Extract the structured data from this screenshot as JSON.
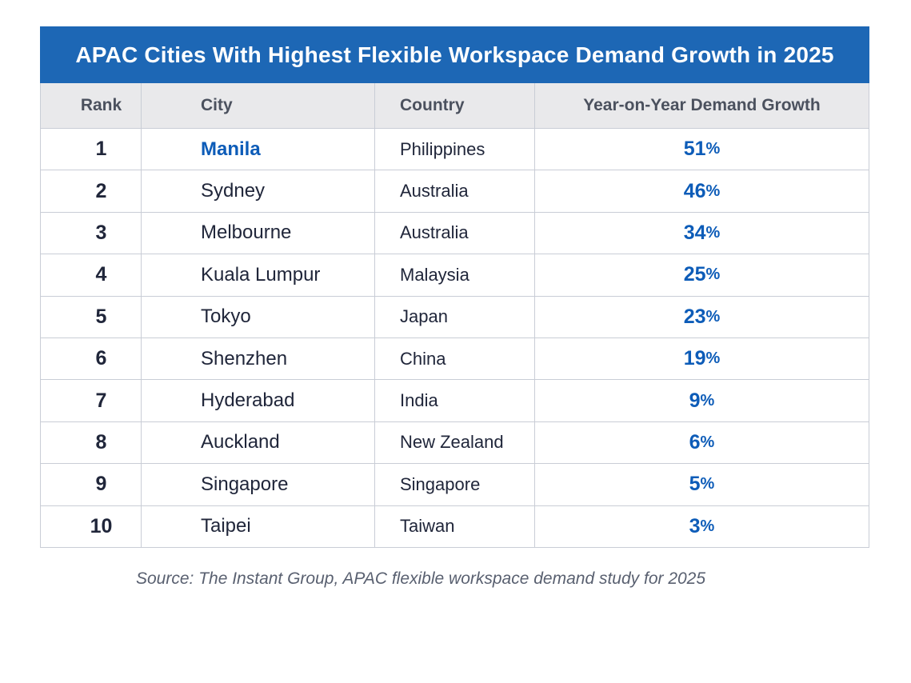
{
  "table": {
    "title": "APAC Cities With Highest Flexible Workspace Demand Growth in 2025",
    "columns": [
      "Rank",
      "City",
      "Country",
      "Year-on-Year Demand Growth"
    ],
    "rows": [
      {
        "rank": "1",
        "city": "Manila",
        "country": "Philippines",
        "growth_value": "51",
        "growth_unit": "%",
        "highlight": true
      },
      {
        "rank": "2",
        "city": "Sydney",
        "country": "Australia",
        "growth_value": "46",
        "growth_unit": "%",
        "highlight": false
      },
      {
        "rank": "3",
        "city": "Melbourne",
        "country": "Australia",
        "growth_value": "34",
        "growth_unit": "%",
        "highlight": false
      },
      {
        "rank": "4",
        "city": "Kuala Lumpur",
        "country": "Malaysia",
        "growth_value": "25",
        "growth_unit": "%",
        "highlight": false
      },
      {
        "rank": "5",
        "city": "Tokyo",
        "country": "Japan",
        "growth_value": "23",
        "growth_unit": "%",
        "highlight": false
      },
      {
        "rank": "6",
        "city": "Shenzhen",
        "country": "China",
        "growth_value": "19",
        "growth_unit": "%",
        "highlight": false
      },
      {
        "rank": "7",
        "city": "Hyderabad",
        "country": "India",
        "growth_value": "9",
        "growth_unit": "%",
        "highlight": false
      },
      {
        "rank": "8",
        "city": "Auckland",
        "country": "New Zealand",
        "growth_value": "6",
        "growth_unit": "%",
        "highlight": false
      },
      {
        "rank": "9",
        "city": "Singapore",
        "country": "Singapore",
        "growth_value": "5",
        "growth_unit": "%",
        "highlight": false
      },
      {
        "rank": "10",
        "city": "Taipei",
        "country": "Taiwan",
        "growth_value": "3",
        "growth_unit": "%",
        "highlight": false
      }
    ]
  },
  "source_note": "Source: The Instant Group, APAC flexible workspace demand study for 2025",
  "theme": {
    "banner-blue": "#1d67b5",
    "accent-blue": "#0d5cb8",
    "header-bg": "#e9e9eb",
    "header-text": "#4b515e",
    "body-text": "#20263a",
    "border": "#c9cdd6",
    "source-text": "#596070"
  },
  "chart_data": {
    "type": "table",
    "title": "APAC Cities With Highest Flexible Workspace Demand Growth in 2025",
    "columns": [
      "Rank",
      "City",
      "Country",
      "Year-on-Year Demand Growth"
    ],
    "rows": [
      [
        1,
        "Manila",
        "Philippines",
        "51%"
      ],
      [
        2,
        "Sydney",
        "Australia",
        "46%"
      ],
      [
        3,
        "Melbourne",
        "Australia",
        "34%"
      ],
      [
        4,
        "Kuala Lumpur",
        "Malaysia",
        "25%"
      ],
      [
        5,
        "Tokyo",
        "Japan",
        "23%"
      ],
      [
        6,
        "Shenzhen",
        "China",
        "19%"
      ],
      [
        7,
        "Hyderabad",
        "India",
        "9%"
      ],
      [
        8,
        "Auckland",
        "New Zealand",
        "6%"
      ],
      [
        9,
        "Singapore",
        "Singapore",
        "5%"
      ],
      [
        10,
        "Taipei",
        "Taiwan",
        "3%"
      ]
    ],
    "source": "Source: The Instant Group, APAC flexible workspace demand study for 2025",
    "notes": "Rank 1 city (Manila) and all growth percentages highlighted in blue #0d5cb8"
  }
}
